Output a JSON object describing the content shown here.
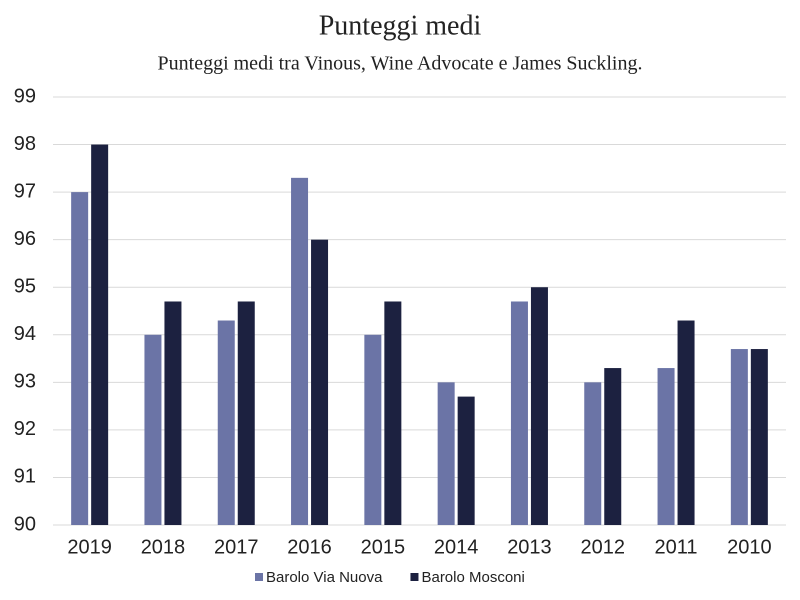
{
  "chart_data": {
    "type": "bar",
    "title": "Punteggi medi",
    "subtitle": "Punteggi medi tra Vinous, Wine Advocate e James Suckling.",
    "categories": [
      "2019",
      "2018",
      "2017",
      "2016",
      "2015",
      "2014",
      "2013",
      "2012",
      "2011",
      "2010"
    ],
    "series": [
      {
        "name": "Barolo Via Nuova",
        "color": "#6b74a6",
        "values": [
          97,
          94,
          94.3,
          97.3,
          94,
          93,
          94.7,
          93,
          93.3,
          93.7
        ]
      },
      {
        "name": "Barolo Mosconi",
        "color": "#1c2140",
        "values": [
          98,
          94.7,
          94.7,
          96,
          94.7,
          92.7,
          95,
          93.3,
          94.3,
          93.7
        ]
      }
    ],
    "ylim": [
      90,
      99
    ],
    "yticks": [
      90,
      91,
      92,
      93,
      94,
      95,
      96,
      97,
      98,
      99
    ],
    "grid": true,
    "legend": "bottom"
  }
}
